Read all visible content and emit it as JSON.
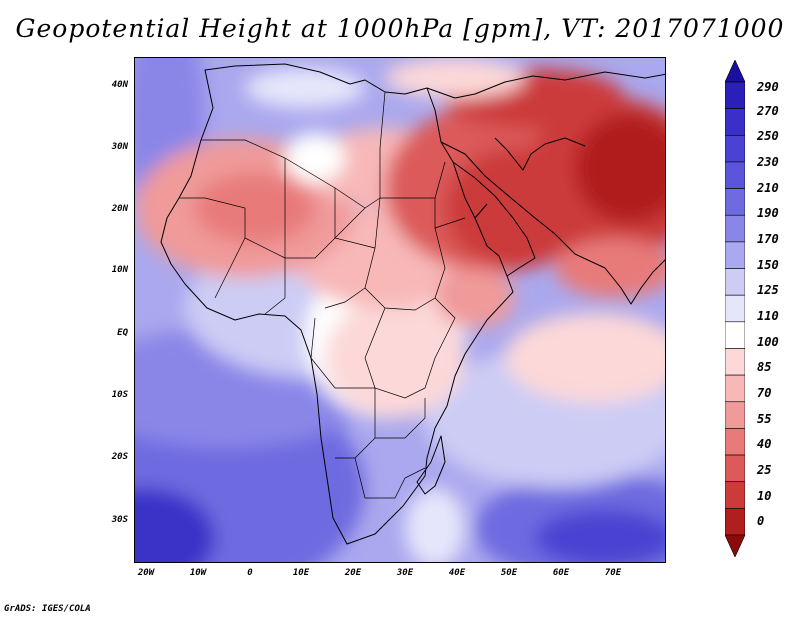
{
  "title": "Geopotential Height at 1000hPa [gpm], VT: 2017071000",
  "credit": "GrADS: IGES/COLA",
  "map": {
    "lat_ticks": [
      "40N",
      "30N",
      "20N",
      "10N",
      "EQ",
      "10S",
      "20S",
      "30S"
    ],
    "lon_ticks": [
      "20W",
      "10W",
      "0",
      "10E",
      "20E",
      "30E",
      "40E",
      "50E",
      "60E",
      "70E"
    ]
  },
  "colorbar": {
    "labels": [
      "290",
      "270",
      "250",
      "230",
      "210",
      "190",
      "170",
      "150",
      "125",
      "110",
      "100",
      "85",
      "70",
      "55",
      "40",
      "25",
      "10",
      "0"
    ],
    "colors": [
      "#1a0fa0",
      "#2a1fb8",
      "#3a30c8",
      "#4a42d2",
      "#5a55da",
      "#6e6ae0",
      "#8a86e8",
      "#aaa8ee",
      "#ccccf5",
      "#e6e6fb",
      "#ffffff",
      "#fcd8d8",
      "#f8b8b8",
      "#f09a9a",
      "#e87a7a",
      "#dc5a5a",
      "#cc3a3a",
      "#b01e1e",
      "#8c0a0a"
    ]
  }
}
